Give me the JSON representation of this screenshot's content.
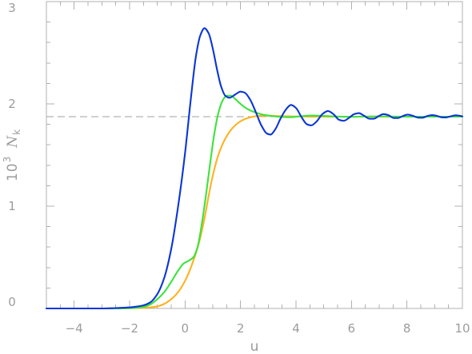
{
  "chart_data": {
    "type": "line",
    "xlabel": "u",
    "ylabel": {
      "base": "10",
      "exponent": "3",
      "symbol": "N",
      "subscript": "k"
    },
    "xlim": [
      -5,
      10
    ],
    "ylim": [
      0,
      3
    ],
    "x_ticks": [
      -4,
      -2,
      0,
      2,
      4,
      6,
      8,
      10
    ],
    "x_tick_labels": [
      "−4",
      "−2",
      "0",
      "2",
      "4",
      "6",
      "8",
      "10"
    ],
    "y_ticks": [
      0,
      1,
      2,
      3
    ],
    "y_tick_labels": [
      "0",
      "1",
      "2",
      "3"
    ],
    "grid": false,
    "legend": "none",
    "axis_color": "#b0b0b0",
    "reference_line": {
      "y": 1.875,
      "style": "dashed",
      "color": "#a0a0a0"
    },
    "series": [
      {
        "color": "#fdb31f",
        "points": [
          [
            -5,
            0
          ],
          [
            -2.5,
            0
          ],
          [
            -2,
            0.002
          ],
          [
            -1.5,
            0.006
          ],
          [
            -1.2,
            0.012
          ],
          [
            -1,
            0.02
          ],
          [
            -0.75,
            0.045
          ],
          [
            -0.5,
            0.09
          ],
          [
            -0.25,
            0.16
          ],
          [
            0,
            0.27
          ],
          [
            0.25,
            0.43
          ],
          [
            0.5,
            0.64
          ],
          [
            0.7,
            0.88
          ],
          [
            0.85,
            1.1
          ],
          [
            1,
            1.3
          ],
          [
            1.2,
            1.5
          ],
          [
            1.45,
            1.66
          ],
          [
            1.7,
            1.76
          ],
          [
            2,
            1.83
          ],
          [
            2.3,
            1.865
          ],
          [
            2.6,
            1.88
          ],
          [
            3,
            1.884
          ],
          [
            3.5,
            1.88
          ],
          [
            4,
            1.877
          ],
          [
            5,
            1.875
          ],
          [
            10,
            1.875
          ]
        ]
      },
      {
        "color": "#3ce33c",
        "points": [
          [
            -5,
            0
          ],
          [
            -2.5,
            0
          ],
          [
            -2,
            0.003
          ],
          [
            -1.5,
            0.015
          ],
          [
            -1.25,
            0.04
          ],
          [
            -1,
            0.09
          ],
          [
            -0.75,
            0.16
          ],
          [
            -0.5,
            0.26
          ],
          [
            -0.25,
            0.37
          ],
          [
            -0.05,
            0.44
          ],
          [
            0.15,
            0.47
          ],
          [
            0.3,
            0.5
          ],
          [
            0.45,
            0.6
          ],
          [
            0.6,
            0.82
          ],
          [
            0.75,
            1.1
          ],
          [
            0.9,
            1.41
          ],
          [
            1.05,
            1.7
          ],
          [
            1.2,
            1.91
          ],
          [
            1.35,
            2.03
          ],
          [
            1.5,
            2.08
          ],
          [
            1.65,
            2.08
          ],
          [
            1.8,
            2.05
          ],
          [
            2,
            2
          ],
          [
            2.25,
            1.95
          ],
          [
            2.5,
            1.92
          ],
          [
            2.8,
            1.895
          ],
          [
            3.1,
            1.882
          ],
          [
            3.5,
            1.872
          ],
          [
            3.8,
            1.87
          ],
          [
            4.2,
            1.88
          ],
          [
            4.6,
            1.886
          ],
          [
            5,
            1.882
          ],
          [
            5.5,
            1.876
          ],
          [
            6,
            1.873
          ],
          [
            6.5,
            1.877
          ],
          [
            7,
            1.878
          ],
          [
            8,
            1.875
          ],
          [
            10,
            1.875
          ]
        ]
      },
      {
        "color": "#0a36d6",
        "points": [
          [
            -5,
            0
          ],
          [
            -3,
            0
          ],
          [
            -2.5,
            0.004
          ],
          [
            -2,
            0.01
          ],
          [
            -1.75,
            0.018
          ],
          [
            -1.5,
            0.03
          ],
          [
            -1.25,
            0.06
          ],
          [
            -1,
            0.14
          ],
          [
            -0.75,
            0.3
          ],
          [
            -0.5,
            0.58
          ],
          [
            -0.25,
            1.0
          ],
          [
            0,
            1.52
          ],
          [
            0.2,
            2.03
          ],
          [
            0.4,
            2.48
          ],
          [
            0.55,
            2.67
          ],
          [
            0.7,
            2.74
          ],
          [
            0.85,
            2.69
          ],
          [
            1,
            2.54
          ],
          [
            1.15,
            2.34
          ],
          [
            1.3,
            2.17
          ],
          [
            1.45,
            2.08
          ],
          [
            1.6,
            2.06
          ],
          [
            1.8,
            2.09
          ],
          [
            2,
            2.12
          ],
          [
            2.15,
            2.11
          ],
          [
            2.35,
            2.04
          ],
          [
            2.55,
            1.92
          ],
          [
            2.75,
            1.79
          ],
          [
            2.95,
            1.71
          ],
          [
            3.08,
            1.7
          ],
          [
            3.25,
            1.75
          ],
          [
            3.45,
            1.86
          ],
          [
            3.65,
            1.95
          ],
          [
            3.82,
            1.99
          ],
          [
            4,
            1.96
          ],
          [
            4.2,
            1.87
          ],
          [
            4.4,
            1.8
          ],
          [
            4.55,
            1.79
          ],
          [
            4.75,
            1.83
          ],
          [
            4.95,
            1.9
          ],
          [
            5.15,
            1.93
          ],
          [
            5.35,
            1.9
          ],
          [
            5.55,
            1.845
          ],
          [
            5.72,
            1.835
          ],
          [
            5.92,
            1.865
          ],
          [
            6.1,
            1.9
          ],
          [
            6.27,
            1.91
          ],
          [
            6.45,
            1.885
          ],
          [
            6.65,
            1.855
          ],
          [
            6.8,
            1.855
          ],
          [
            6.98,
            1.88
          ],
          [
            7.15,
            1.9
          ],
          [
            7.33,
            1.89
          ],
          [
            7.52,
            1.862
          ],
          [
            7.68,
            1.862
          ],
          [
            7.86,
            1.882
          ],
          [
            8.03,
            1.895
          ],
          [
            8.2,
            1.885
          ],
          [
            8.4,
            1.866
          ],
          [
            8.56,
            1.865
          ],
          [
            8.74,
            1.882
          ],
          [
            8.9,
            1.89
          ],
          [
            9.07,
            1.884
          ],
          [
            9.25,
            1.869
          ],
          [
            9.42,
            1.868
          ],
          [
            9.6,
            1.88
          ],
          [
            9.76,
            1.888
          ],
          [
            9.92,
            1.883
          ],
          [
            10,
            1.878
          ]
        ]
      }
    ]
  }
}
